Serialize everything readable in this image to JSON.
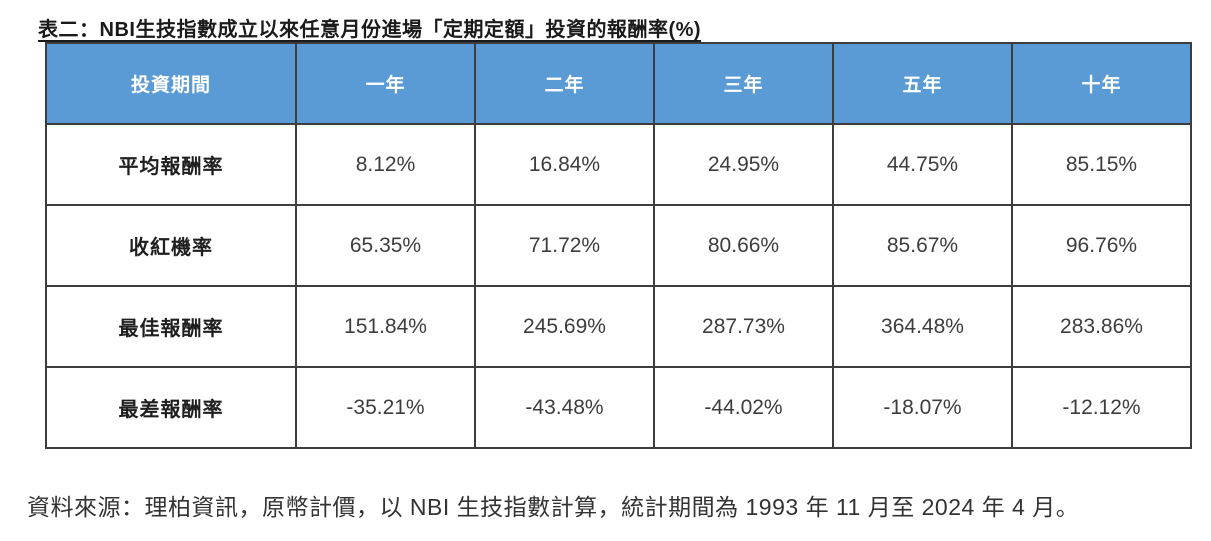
{
  "title": "表二：NBI生技指數成立以來任意月份進場「定期定額」投資的報酬率(%)",
  "colors": {
    "header_bg": "#5B9BD5",
    "header_text": "#FFFFFF",
    "border": "#3D3D3D",
    "label_text": "#1F1F1F",
    "value_text": "#3D3D3D"
  },
  "chart_data": {
    "type": "table",
    "title": "表二：NBI生技指數成立以來任意月份進場「定期定額」投資的報酬率(%)",
    "columns": [
      "投資期間",
      "一年",
      "二年",
      "三年",
      "五年",
      "十年"
    ],
    "rows": [
      {
        "label": "平均報酬率",
        "values": [
          "8.12%",
          "16.84%",
          "24.95%",
          "44.75%",
          "85.15%"
        ]
      },
      {
        "label": "收紅機率",
        "values": [
          "65.35%",
          "71.72%",
          "80.66%",
          "85.67%",
          "96.76%"
        ]
      },
      {
        "label": "最佳報酬率",
        "values": [
          "151.84%",
          "245.69%",
          "287.73%",
          "364.48%",
          "283.86%"
        ]
      },
      {
        "label": "最差報酬率",
        "values": [
          "-35.21%",
          "-43.48%",
          "-44.02%",
          "-18.07%",
          "-12.12%"
        ]
      }
    ]
  },
  "source_note": "資料來源：理柏資訊，原幣計價，以 NBI 生技指數計算，統計期間為 1993 年 11 月至 2024 年 4 月。"
}
